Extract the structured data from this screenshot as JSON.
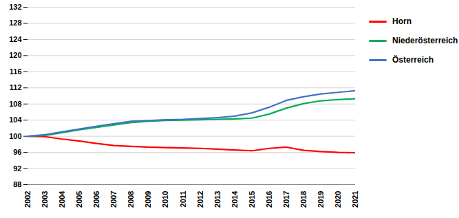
{
  "chart_data": {
    "type": "line",
    "x": [
      2002,
      2003,
      2004,
      2005,
      2006,
      2007,
      2008,
      2009,
      2010,
      2011,
      2012,
      2013,
      2014,
      2015,
      2016,
      2017,
      2018,
      2019,
      2020,
      2021
    ],
    "xlim": [
      2002,
      2021
    ],
    "xticks": [
      2002,
      2003,
      2004,
      2005,
      2006,
      2007,
      2008,
      2009,
      2010,
      2011,
      2012,
      2013,
      2014,
      2015,
      2016,
      2017,
      2018,
      2019,
      2020,
      2021
    ],
    "ylim": [
      88,
      132
    ],
    "yticks": [
      88,
      92,
      96,
      100,
      104,
      108,
      112,
      116,
      120,
      124,
      128,
      132
    ],
    "grid": true,
    "legend": "right",
    "series": [
      {
        "name": "Horn",
        "color": "#ff0000",
        "values": [
          100.0,
          99.9,
          99.3,
          98.8,
          98.2,
          97.7,
          97.5,
          97.3,
          97.2,
          97.1,
          97.0,
          96.8,
          96.6,
          96.4,
          97.0,
          97.3,
          96.5,
          96.2,
          96.0,
          95.9
        ]
      },
      {
        "name": "Niederösterreich",
        "color": "#00b050",
        "values": [
          100.0,
          100.2,
          100.9,
          101.6,
          102.2,
          102.8,
          103.4,
          103.7,
          103.9,
          104.0,
          104.1,
          104.2,
          104.3,
          104.5,
          105.5,
          107.0,
          108.1,
          108.8,
          109.1,
          109.3
        ]
      },
      {
        "name": "Österreich",
        "color": "#4472c4",
        "values": [
          100.0,
          100.4,
          101.1,
          101.8,
          102.5,
          103.1,
          103.7,
          103.9,
          104.1,
          104.2,
          104.4,
          104.6,
          105.0,
          105.8,
          107.2,
          108.9,
          109.8,
          110.5,
          110.9,
          111.3
        ]
      }
    ]
  }
}
